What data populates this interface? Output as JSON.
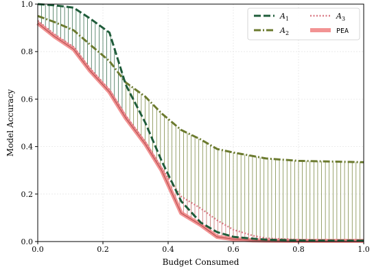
{
  "chart_data": {
    "type": "line",
    "title": "",
    "xlabel": "Budget Consumed",
    "ylabel": "Model Accuracy",
    "xlim": [
      0,
      1
    ],
    "ylim": [
      0,
      1
    ],
    "xticks": [
      "0.0",
      "0.2",
      "0.4",
      "0.6",
      "0.8",
      "1.0"
    ],
    "yticks": [
      "0.0",
      "0.2",
      "0.4",
      "0.6",
      "0.8",
      "1.0"
    ],
    "grid": true,
    "legend_position": "top-right",
    "series": [
      {
        "name": "A",
        "subscript": "1",
        "color": "#1f5c3a",
        "style": "dashed",
        "x": [
          0.0,
          0.05,
          0.11,
          0.16,
          0.22,
          0.27,
          0.33,
          0.38,
          0.44,
          0.5,
          0.55,
          0.6,
          0.66,
          0.7,
          0.8,
          0.9,
          1.0
        ],
        "y": [
          1.0,
          0.995,
          0.985,
          0.94,
          0.88,
          0.66,
          0.5,
          0.34,
          0.17,
          0.08,
          0.04,
          0.02,
          0.012,
          0.008,
          0.005,
          0.004,
          0.004
        ]
      },
      {
        "name": "A",
        "subscript": "2",
        "color": "#6b7a2e",
        "style": "dashdot",
        "x": [
          0.0,
          0.05,
          0.11,
          0.16,
          0.22,
          0.27,
          0.33,
          0.38,
          0.44,
          0.5,
          0.55,
          0.6,
          0.66,
          0.7,
          0.8,
          0.9,
          1.0
        ],
        "y": [
          0.95,
          0.925,
          0.89,
          0.83,
          0.76,
          0.67,
          0.61,
          0.54,
          0.47,
          0.43,
          0.39,
          0.375,
          0.36,
          0.35,
          0.34,
          0.337,
          0.334
        ]
      },
      {
        "name": "A",
        "subscript": "3",
        "color": "#d97a85",
        "style": "dotted",
        "x": [
          0.0,
          0.05,
          0.11,
          0.16,
          0.22,
          0.27,
          0.33,
          0.38,
          0.44,
          0.5,
          0.55,
          0.6,
          0.66,
          0.7,
          0.8,
          0.9,
          1.0
        ],
        "y": [
          0.93,
          0.875,
          0.82,
          0.73,
          0.64,
          0.53,
          0.42,
          0.31,
          0.19,
          0.14,
          0.09,
          0.05,
          0.025,
          0.014,
          0.008,
          0.006,
          0.006
        ]
      },
      {
        "name": "PEA",
        "subscript": "",
        "color": "#f08080",
        "style": "thick",
        "x": [
          0.0,
          0.05,
          0.11,
          0.16,
          0.22,
          0.27,
          0.33,
          0.38,
          0.44,
          0.5,
          0.55,
          0.6,
          0.66,
          0.7,
          0.8,
          0.9,
          1.0
        ],
        "y": [
          0.92,
          0.865,
          0.81,
          0.72,
          0.63,
          0.52,
          0.41,
          0.3,
          0.12,
          0.07,
          0.02,
          0.01,
          0.005,
          0.004,
          0.003,
          0.003,
          0.003
        ]
      }
    ]
  }
}
